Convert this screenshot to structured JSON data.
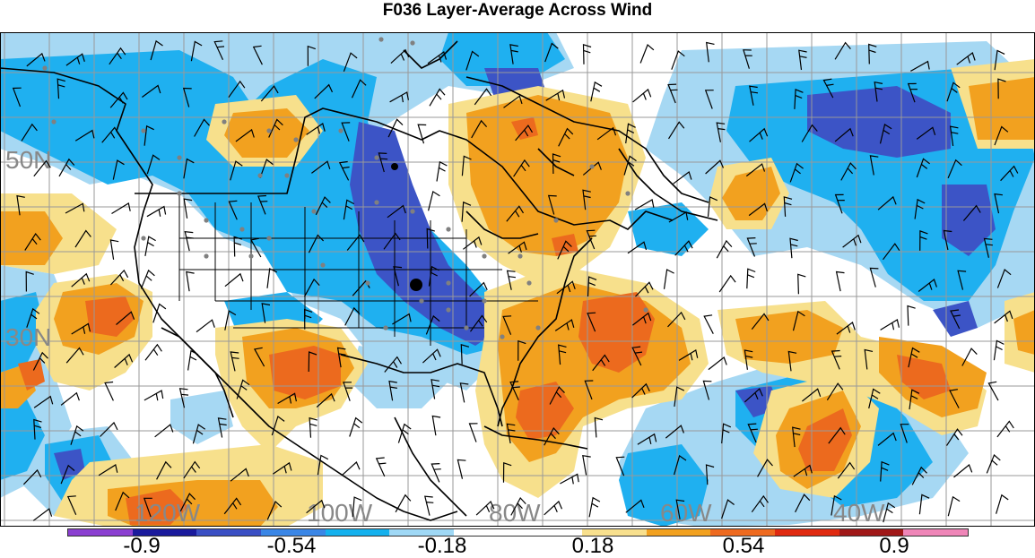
{
  "title": "F036 Layer-Average Across Wind",
  "map": {
    "lat_labels": [
      "50N",
      "30N"
    ],
    "lon_labels": [
      "120W",
      "100W",
      "80W",
      "60W",
      "40W"
    ],
    "colors": {
      "ocean_background": "#ffffff",
      "coastline": "#000000",
      "gridline": "#999999",
      "wind_barb": "#000000",
      "station_dot": "#808080"
    },
    "icons": [
      "wind-barb-icon",
      "station-dot-icon"
    ]
  },
  "colorbar": {
    "colors": [
      "#8b3fd1",
      "#1a1a9c",
      "#3a4fc4",
      "#3a86e6",
      "#14b1ee",
      "#9fd8f5",
      "#ffffff",
      "#ffffff",
      "#f8e08e",
      "#f2a11f",
      "#ee6a1f",
      "#e02a10",
      "#a01818",
      "#ef86b8"
    ],
    "labels": [
      "-0.9",
      "-0.54",
      "-0.18",
      "0.18",
      "0.54",
      "0.9"
    ]
  }
}
